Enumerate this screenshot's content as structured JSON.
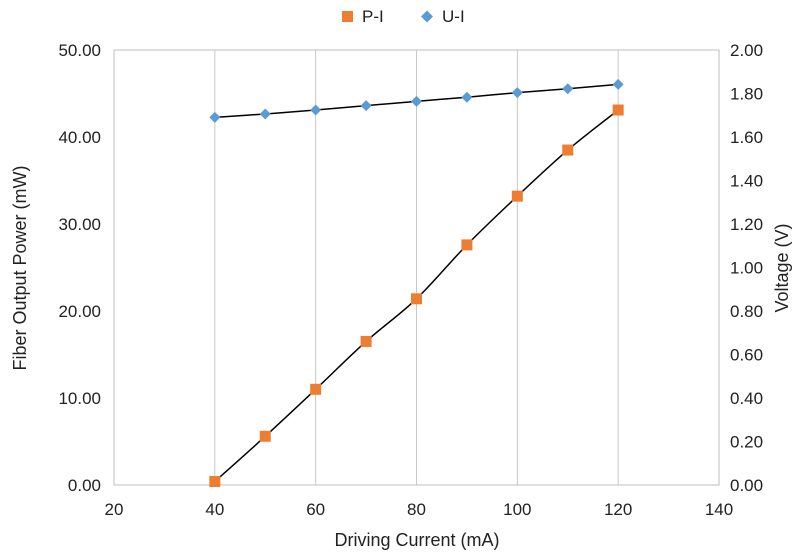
{
  "chart_data": {
    "type": "scatter",
    "title": "",
    "x": [
      40,
      50,
      60,
      70,
      80,
      90,
      100,
      110,
      120
    ],
    "xlabel": "Driving Current (mA)",
    "xlim": [
      20,
      140
    ],
    "xticks": [
      "20",
      "40",
      "60",
      "80",
      "100",
      "120",
      "140"
    ],
    "ylabel": "Fiber Output Power (mW)",
    "ylim": [
      0,
      50
    ],
    "yticks": [
      "0.00",
      "10.00",
      "20.00",
      "30.00",
      "40.00",
      "50.00"
    ],
    "y2label": "Voltage (V)",
    "y2lim": [
      0,
      2
    ],
    "y2ticks": [
      "0.00",
      "0.20",
      "0.40",
      "0.60",
      "0.80",
      "1.00",
      "1.20",
      "1.40",
      "1.60",
      "1.80",
      "2.00"
    ],
    "grid": "vertical",
    "legend_position": "top-center",
    "series": [
      {
        "name": "P-I",
        "axis": "left",
        "marker": "square",
        "color": "#ED7D31",
        "values": [
          0.4,
          5.6,
          11.0,
          16.5,
          21.4,
          27.6,
          33.2,
          38.5,
          43.1
        ]
      },
      {
        "name": "U-I",
        "axis": "right",
        "marker": "diamond",
        "color": "#5B9BD5",
        "values": [
          1.69,
          1.706,
          1.724,
          1.744,
          1.764,
          1.783,
          1.804,
          1.822,
          1.842
        ]
      }
    ]
  }
}
